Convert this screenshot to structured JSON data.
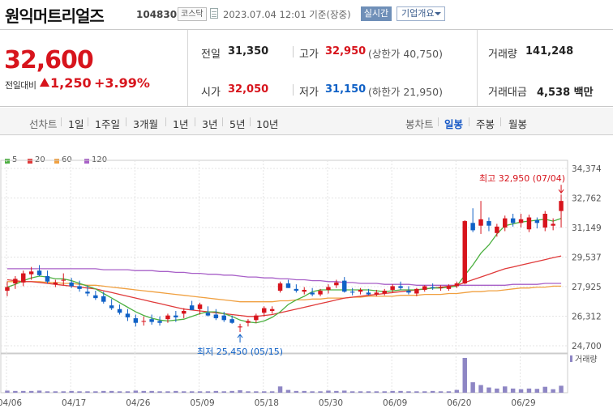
{
  "header": {
    "title": "원익머트리얼즈",
    "code": "104830",
    "market_badge": "코스닥",
    "datetime": "2023.07.04 12:01 기준(장중)",
    "realtime_button": "실시간",
    "company_button": "기업개요"
  },
  "summary": {
    "current_price": "32,600",
    "change_label": "전일대비",
    "change": "1,250",
    "change_pct": "+3.99%",
    "prev_close_label": "전일",
    "prev_close": "31,350",
    "open_label": "시가",
    "open": "32,050",
    "high_label": "고가",
    "high": "32,950",
    "upper_limit": "(상한가 40,750)",
    "low_label": "저가",
    "low": "31,150",
    "lower_limit": "(하한가 21,950)",
    "volume_label": "거래량",
    "volume": "141,248",
    "turnover_label": "거래대금",
    "turnover": "4,538 백만"
  },
  "tabs": {
    "line_chart": "선차트",
    "periods": [
      "1일",
      "1주일",
      "3개월",
      "1년",
      "3년",
      "5년",
      "10년"
    ],
    "candle_chart": "봉차트",
    "candle_periods": [
      "일봉",
      "주봉",
      "월봉"
    ],
    "active_candle": "일봉"
  },
  "colors": {
    "up": "#d7141c",
    "down": "#1061c6",
    "ma5": "#4cb040",
    "ma20": "#e03a3a",
    "ma60": "#f0a040",
    "ma120": "#a860c8",
    "volume": "#8e86c4"
  },
  "chart_data": {
    "type": "candlestick",
    "legend": [
      "5",
      "20",
      "60",
      "120"
    ],
    "y_ticks": [
      "34,374",
      "32,762",
      "31,149",
      "29,537",
      "27,925",
      "26,312",
      "24,700"
    ],
    "ylim": [
      24700,
      34374
    ],
    "x_labels": [
      "04/06",
      "04/17",
      "04/26",
      "05/09",
      "05/18",
      "05/30",
      "06/09",
      "06/20",
      "06/29"
    ],
    "high_annotation": "최고 32,950 (07/04)",
    "low_annotation": "최저 25,450 (05/15)",
    "volume_label": "거래량",
    "candles": [
      [
        27700,
        28200,
        27400,
        27900
      ],
      [
        28100,
        28500,
        27800,
        28350
      ],
      [
        28150,
        28800,
        27950,
        28650
      ],
      [
        28600,
        29000,
        28300,
        28750
      ],
      [
        28800,
        29100,
        28500,
        28550
      ],
      [
        28500,
        28800,
        28100,
        28200
      ],
      [
        28050,
        28300,
        27900,
        28150
      ],
      [
        28250,
        28650,
        28000,
        28300
      ],
      [
        28150,
        28400,
        27850,
        27950
      ],
      [
        27950,
        28250,
        27650,
        27800
      ],
      [
        27650,
        28000,
        27400,
        27550
      ],
      [
        27450,
        27700,
        27200,
        27300
      ],
      [
        27400,
        27650,
        27000,
        27100
      ],
      [
        26900,
        27250,
        26650,
        26750
      ],
      [
        26700,
        26950,
        26400,
        26500
      ],
      [
        26450,
        26700,
        26050,
        26250
      ],
      [
        26200,
        26400,
        25750,
        25950
      ],
      [
        26050,
        26300,
        25800,
        26050
      ],
      [
        26150,
        26400,
        25850,
        26000
      ],
      [
        26050,
        26300,
        25800,
        25950
      ],
      [
        26150,
        26450,
        25950,
        26350
      ],
      [
        26350,
        26600,
        26000,
        26250
      ],
      [
        26450,
        26750,
        26200,
        26600
      ],
      [
        26900,
        27150,
        26650,
        26650
      ],
      [
        26700,
        27050,
        26400,
        26950
      ],
      [
        26500,
        26850,
        26300,
        26350
      ],
      [
        26400,
        26700,
        26100,
        26200
      ],
      [
        26350,
        26550,
        26000,
        26100
      ],
      [
        26150,
        26350,
        25900,
        25950
      ],
      [
        25700,
        25900,
        25450,
        25750
      ],
      [
        25950,
        26150,
        25750,
        26050
      ],
      [
        26100,
        26450,
        25950,
        26350
      ],
      [
        26500,
        26850,
        26300,
        26750
      ],
      [
        26600,
        26850,
        26450,
        26700
      ],
      [
        27700,
        28200,
        27600,
        28100
      ],
      [
        28100,
        28300,
        27850,
        27850
      ],
      [
        27800,
        28050,
        27600,
        27700
      ],
      [
        27650,
        27900,
        27500,
        27750
      ],
      [
        27600,
        27850,
        27400,
        27500
      ],
      [
        27500,
        27800,
        27400,
        27700
      ],
      [
        27750,
        28050,
        27550,
        27900
      ],
      [
        28000,
        28300,
        27850,
        28150
      ],
      [
        28250,
        28450,
        27600,
        27650
      ],
      [
        27650,
        27850,
        27450,
        27600
      ],
      [
        27650,
        27850,
        27500,
        27750
      ],
      [
        27600,
        27800,
        27450,
        27500
      ],
      [
        27500,
        27750,
        27400,
        27600
      ],
      [
        27550,
        27800,
        27450,
        27700
      ],
      [
        27750,
        28050,
        27600,
        27950
      ],
      [
        27950,
        28200,
        27750,
        27850
      ],
      [
        27700,
        27950,
        27500,
        27600
      ],
      [
        27550,
        27850,
        27400,
        27800
      ],
      [
        27750,
        28000,
        27650,
        27950
      ],
      [
        27900,
        28100,
        27750,
        27850
      ],
      [
        27850,
        28000,
        27700,
        27900
      ],
      [
        27800,
        28050,
        27700,
        27950
      ],
      [
        27950,
        28200,
        27850,
        28100
      ],
      [
        28100,
        31550,
        28050,
        31500
      ],
      [
        31400,
        32200,
        30900,
        31000
      ],
      [
        31250,
        32600,
        30800,
        31600
      ],
      [
        31500,
        31700,
        30950,
        31250
      ],
      [
        30850,
        31350,
        30650,
        31200
      ],
      [
        31150,
        31800,
        30950,
        31650
      ],
      [
        31650,
        31900,
        31200,
        31400
      ],
      [
        31400,
        31900,
        31150,
        31600
      ],
      [
        31050,
        31850,
        30900,
        31700
      ],
      [
        31550,
        31700,
        31100,
        31400
      ],
      [
        31150,
        32050,
        30950,
        31900
      ],
      [
        31250,
        31650,
        31000,
        31350
      ],
      [
        32050,
        32950,
        31150,
        32600
      ]
    ],
    "ma5": [
      27900,
      28050,
      28250,
      28400,
      28500,
      28450,
      28350,
      28350,
      28250,
      28100,
      27950,
      27800,
      27550,
      27300,
      27050,
      26800,
      26550,
      26350,
      26200,
      26100,
      26050,
      26100,
      26150,
      26300,
      26450,
      26550,
      26550,
      26450,
      26300,
      26100,
      26000,
      25950,
      26050,
      26250,
      26550,
      26950,
      27200,
      27400,
      27650,
      27750,
      27750,
      27750,
      27750,
      27750,
      27750,
      27750,
      27700,
      27650,
      27700,
      27750,
      27750,
      27750,
      27800,
      27850,
      27850,
      27900,
      27950,
      28550,
      29100,
      29750,
      30200,
      30800,
      31250,
      31350,
      31450,
      31500,
      31550,
      31600,
      31500,
      31650
    ],
    "ma20": [
      28300,
      28250,
      28200,
      28200,
      28150,
      28100,
      28050,
      28000,
      27950,
      27900,
      27850,
      27800,
      27700,
      27600,
      27500,
      27400,
      27300,
      27200,
      27100,
      27000,
      26900,
      26800,
      26700,
      26650,
      26600,
      26550,
      26500,
      26450,
      26400,
      26350,
      26300,
      26300,
      26350,
      26400,
      26500,
      26600,
      26700,
      26800,
      26900,
      27000,
      27100,
      27200,
      27300,
      27350,
      27400,
      27450,
      27500,
      27550,
      27600,
      27650,
      27700,
      27750,
      27800,
      27850,
      27900,
      27950,
      28000,
      28150,
      28300,
      28450,
      28600,
      28750,
      28900,
      29000,
      29100,
      29200,
      29300,
      29400,
      29500,
      29600
    ],
    "ma60": [
      28200,
      28200,
      28200,
      28200,
      28200,
      28150,
      28150,
      28100,
      28100,
      28050,
      28000,
      28000,
      27950,
      27900,
      27850,
      27800,
      27750,
      27700,
      27650,
      27600,
      27550,
      27500,
      27450,
      27400,
      27350,
      27300,
      27250,
      27200,
      27150,
      27100,
      27100,
      27100,
      27100,
      27100,
      27150,
      27150,
      27200,
      27200,
      27250,
      27250,
      27300,
      27300,
      27300,
      27350,
      27350,
      27400,
      27400,
      27400,
      27400,
      27450,
      27450,
      27450,
      27500,
      27500,
      27500,
      27550,
      27550,
      27600,
      27650,
      27650,
      27700,
      27700,
      27750,
      27800,
      27850,
      27850,
      27900,
      27900,
      27950,
      27950
    ],
    "ma120": [
      28900,
      28900,
      28900,
      28900,
      28900,
      28900,
      28900,
      28900,
      28900,
      28900,
      28900,
      28900,
      28850,
      28850,
      28850,
      28850,
      28800,
      28800,
      28800,
      28750,
      28750,
      28700,
      28700,
      28650,
      28650,
      28600,
      28600,
      28550,
      28550,
      28500,
      28450,
      28450,
      28400,
      28400,
      28350,
      28350,
      28300,
      28300,
      28250,
      28250,
      28200,
      28200,
      28150,
      28150,
      28100,
      28100,
      28100,
      28050,
      28050,
      28050,
      28050,
      28000,
      28000,
      28000,
      28000,
      28000,
      28000,
      28000,
      28000,
      28000,
      28000,
      28000,
      28000,
      28050,
      28050,
      28050,
      28050,
      28100,
      28100,
      28100
    ],
    "volume_rel": [
      0.06,
      0.05,
      0.05,
      0.05,
      0.06,
      0.04,
      0.04,
      0.04,
      0.05,
      0.04,
      0.04,
      0.04,
      0.05,
      0.05,
      0.04,
      0.04,
      0.06,
      0.05,
      0.05,
      0.04,
      0.04,
      0.05,
      0.04,
      0.04,
      0.04,
      0.04,
      0.05,
      0.04,
      0.05,
      0.07,
      0.04,
      0.04,
      0.04,
      0.04,
      0.18,
      0.08,
      0.05,
      0.05,
      0.04,
      0.04,
      0.06,
      0.05,
      0.06,
      0.04,
      0.04,
      0.04,
      0.04,
      0.04,
      0.05,
      0.05,
      0.04,
      0.04,
      0.04,
      0.05,
      0.04,
      0.04,
      0.08,
      1.0,
      0.3,
      0.22,
      0.15,
      0.12,
      0.18,
      0.12,
      0.1,
      0.12,
      0.11,
      0.17,
      0.1,
      0.2
    ]
  }
}
